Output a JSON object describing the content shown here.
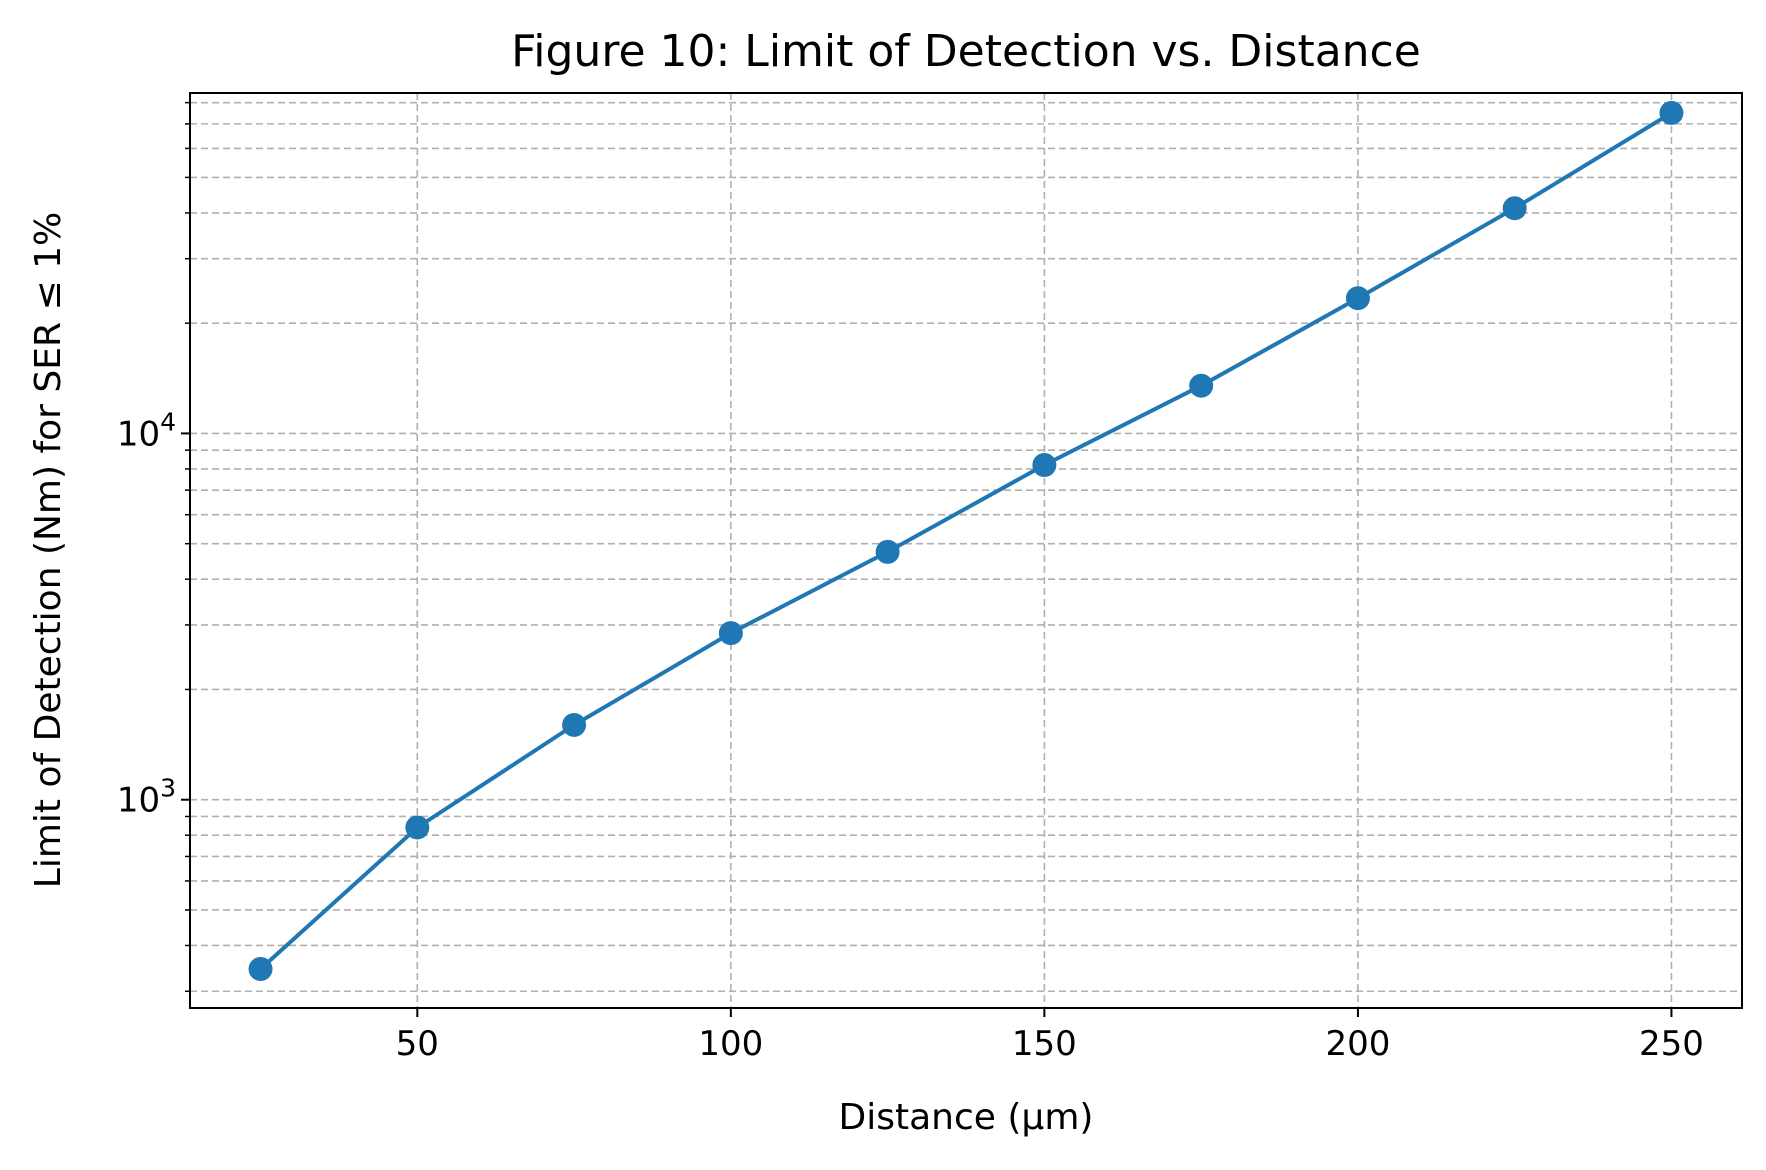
{
  "chart_data": {
    "type": "line",
    "title": "Figure 10: Limit of Detection vs. Distance",
    "xlabel": "Distance (µm)",
    "ylabel": "Limit of Detection (Nm) for SER ≤ 1%",
    "x_scale": "linear",
    "y_scale": "log",
    "xlim": [
      13.75,
      261.25
    ],
    "ylim": [
      270,
      85000
    ],
    "x_ticks": [
      50,
      100,
      150,
      200,
      250
    ],
    "x_tick_labels": [
      "50",
      "100",
      "150",
      "200",
      "250"
    ],
    "y_ticks": [
      {
        "value": 1000,
        "base": "10",
        "exp": "3"
      },
      {
        "value": 10000,
        "base": "10",
        "exp": "4"
      }
    ],
    "grid": true,
    "grid_style": "dashed",
    "grid_includes_minor": true,
    "series": [
      {
        "color": "#1f77b4",
        "marker": "circle",
        "x": [
          25,
          50,
          75,
          100,
          125,
          150,
          175,
          200,
          225,
          250
        ],
        "y": [
          345,
          840,
          1600,
          2850,
          4750,
          8200,
          13500,
          23400,
          41200,
          75000
        ]
      }
    ]
  }
}
